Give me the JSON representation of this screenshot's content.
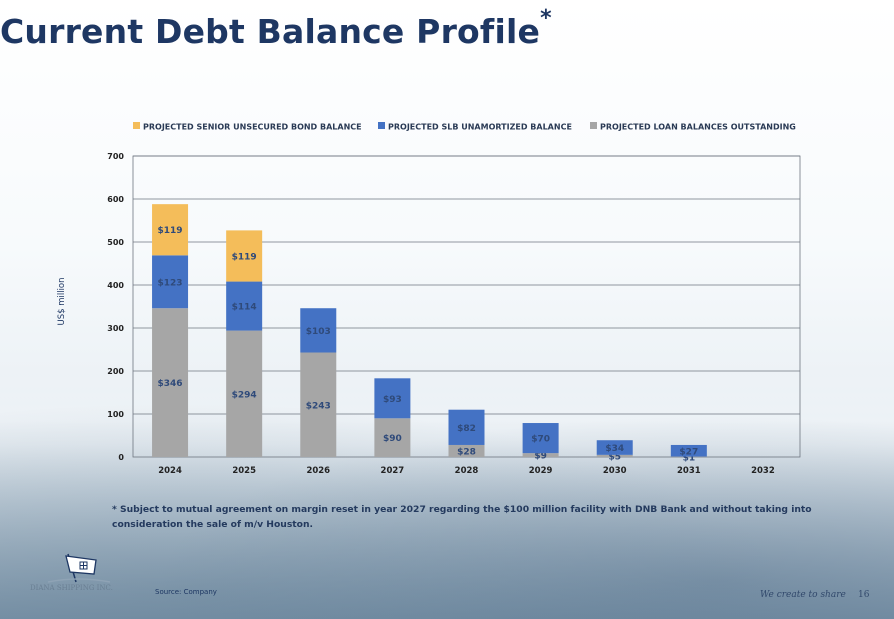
{
  "page": {
    "title": "Current Debt Balance Profile",
    "title_mark": "*",
    "footnote": "*  Subject to mutual agreement on margin reset in year 2027 regarding the $100 million facility with DNB Bank and without taking into consideration the sale of m/v Houston.",
    "source": "Source: Company",
    "company": "DIANA SHIPPING INC.",
    "slogan": "We create to share",
    "page_number": "16"
  },
  "chart_data": {
    "type": "bar",
    "stacked": true,
    "categories": [
      "2024",
      "2025",
      "2026",
      "2027",
      "2028",
      "2029",
      "2030",
      "2031",
      "2032"
    ],
    "series": [
      {
        "name": "PROJECTED LOAN BALANCES OUTSTANDING",
        "color": "#a6a6a6",
        "values": [
          346,
          294,
          243,
          90,
          28,
          9,
          5,
          1,
          0
        ],
        "labels": [
          "$346",
          "$294",
          "$243",
          "$90",
          "$28",
          "$9",
          "$5",
          "$1",
          ""
        ]
      },
      {
        "name": "PROJECTED SLB UNAMORTIZED BALANCE",
        "color": "#4472c4",
        "values": [
          123,
          114,
          103,
          93,
          82,
          70,
          34,
          27,
          0
        ],
        "labels": [
          "$123",
          "$114",
          "$103",
          "$93",
          "$82",
          "$70",
          "$34",
          "$27",
          ""
        ]
      },
      {
        "name": "PROJECTED SENIOR UNSECURED BOND BALANCE",
        "color": "#f4bd5a",
        "values": [
          119,
          119,
          0,
          0,
          0,
          0,
          0,
          0,
          0
        ],
        "labels": [
          "$119",
          "$119",
          "",
          "",
          "",
          "",
          "",
          "",
          ""
        ]
      }
    ],
    "legend_order": [
      "PROJECTED SENIOR UNSECURED BOND BALANCE",
      "PROJECTED SLB UNAMORTIZED BALANCE",
      "PROJECTED LOAN BALANCES OUTSTANDING"
    ],
    "ylabel": "US$ million",
    "ylim": [
      0,
      700
    ],
    "yticks": [
      0,
      100,
      200,
      300,
      400,
      500,
      600,
      700
    ],
    "grid": true,
    "legend_position": "top"
  }
}
